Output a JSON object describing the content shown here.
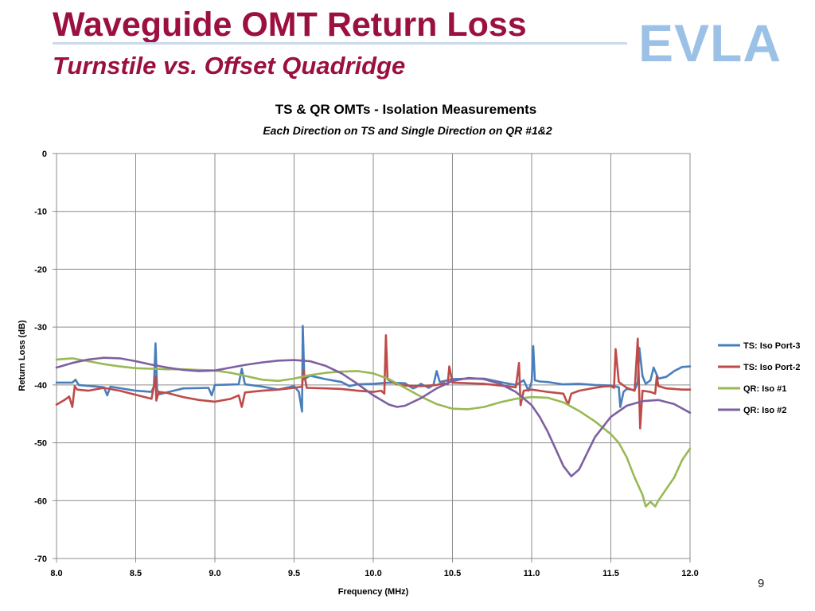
{
  "slide": {
    "title": "Waveguide OMT Return Loss",
    "subtitle": "Turnstile vs. Offset Quadridge",
    "logo_text": "EVLA",
    "page_number": "9"
  },
  "colors": {
    "title": "#9b1040",
    "logo": "#9cc1e6",
    "grid": "#8c8c8c"
  },
  "chart_data": {
    "type": "line",
    "title": "TS & QR OMTs - Isolation Measurements",
    "subtitle": "Each  Direction on TS and Single Direction on QR #1&2",
    "xlabel": "Frequency (MHz)",
    "ylabel": "Return Loss (dB)",
    "xlim": [
      8.0,
      12.0
    ],
    "ylim": [
      -70,
      0
    ],
    "x_ticks": [
      "8.0",
      "8.5",
      "9.0",
      "9.5",
      "10.0",
      "10.5",
      "11.0",
      "11.5",
      "12.0"
    ],
    "y_ticks": [
      "0",
      "-10",
      "-20",
      "-30",
      "-40",
      "-50",
      "-60",
      "-70"
    ],
    "grid": true,
    "legend_position": "right",
    "series": [
      {
        "name": "TS: Iso Port-3",
        "color": "#4a7ebb",
        "points": [
          [
            8.0,
            -39.6
          ],
          [
            8.1,
            -39.6
          ],
          [
            8.12,
            -39.1
          ],
          [
            8.14,
            -40.0
          ],
          [
            8.3,
            -40.4
          ],
          [
            8.32,
            -41.8
          ],
          [
            8.34,
            -40.3
          ],
          [
            8.5,
            -41.0
          ],
          [
            8.6,
            -41.2
          ],
          [
            8.615,
            -40.2
          ],
          [
            8.625,
            -32.8
          ],
          [
            8.635,
            -40.8
          ],
          [
            8.65,
            -41.6
          ],
          [
            8.8,
            -40.6
          ],
          [
            8.96,
            -40.5
          ],
          [
            8.98,
            -41.8
          ],
          [
            9.0,
            -40.0
          ],
          [
            9.15,
            -39.9
          ],
          [
            9.17,
            -37.2
          ],
          [
            9.19,
            -39.9
          ],
          [
            9.3,
            -40.3
          ],
          [
            9.4,
            -40.8
          ],
          [
            9.45,
            -40.5
          ],
          [
            9.5,
            -40.2
          ],
          [
            9.53,
            -41.2
          ],
          [
            9.55,
            -44.6
          ],
          [
            9.555,
            -29.8
          ],
          [
            9.565,
            -39.0
          ],
          [
            9.6,
            -38.4
          ],
          [
            9.7,
            -39.0
          ],
          [
            9.8,
            -39.5
          ],
          [
            9.85,
            -40.2
          ],
          [
            9.9,
            -39.9
          ],
          [
            10.0,
            -39.8
          ],
          [
            10.1,
            -39.6
          ],
          [
            10.2,
            -39.7
          ],
          [
            10.25,
            -40.6
          ],
          [
            10.27,
            -40.4
          ],
          [
            10.3,
            -39.8
          ],
          [
            10.35,
            -40.5
          ],
          [
            10.38,
            -40.0
          ],
          [
            10.4,
            -37.6
          ],
          [
            10.42,
            -39.5
          ],
          [
            10.5,
            -39.0
          ],
          [
            10.6,
            -38.9
          ],
          [
            10.7,
            -38.9
          ],
          [
            10.8,
            -39.5
          ],
          [
            10.9,
            -40.0
          ],
          [
            10.95,
            -39.2
          ],
          [
            10.98,
            -41.0
          ],
          [
            11.0,
            -39.5
          ],
          [
            11.01,
            -33.3
          ],
          [
            11.02,
            -39.2
          ],
          [
            11.05,
            -39.4
          ],
          [
            11.1,
            -39.5
          ],
          [
            11.2,
            -39.9
          ],
          [
            11.3,
            -39.8
          ],
          [
            11.4,
            -40.0
          ],
          [
            11.5,
            -40.1
          ],
          [
            11.55,
            -40.4
          ],
          [
            11.56,
            -43.8
          ],
          [
            11.58,
            -41.2
          ],
          [
            11.6,
            -40.7
          ],
          [
            11.65,
            -40.9
          ],
          [
            11.67,
            -39.5
          ],
          [
            11.68,
            -33.6
          ],
          [
            11.7,
            -38.5
          ],
          [
            11.72,
            -39.8
          ],
          [
            11.75,
            -39.2
          ],
          [
            11.77,
            -37.0
          ],
          [
            11.8,
            -38.9
          ],
          [
            11.85,
            -38.6
          ],
          [
            11.9,
            -37.6
          ],
          [
            11.95,
            -36.9
          ],
          [
            12.0,
            -36.8
          ]
        ]
      },
      {
        "name": "TS: Iso Port-2",
        "color": "#be4b48",
        "points": [
          [
            8.0,
            -43.4
          ],
          [
            8.05,
            -42.6
          ],
          [
            8.08,
            -42.0
          ],
          [
            8.1,
            -43.8
          ],
          [
            8.115,
            -40.2
          ],
          [
            8.13,
            -40.8
          ],
          [
            8.2,
            -41.0
          ],
          [
            8.3,
            -40.5
          ],
          [
            8.4,
            -41.0
          ],
          [
            8.5,
            -41.7
          ],
          [
            8.6,
            -42.4
          ],
          [
            8.615,
            -40.2
          ],
          [
            8.625,
            -38.5
          ],
          [
            8.63,
            -42.7
          ],
          [
            8.645,
            -41.2
          ],
          [
            8.7,
            -41.4
          ],
          [
            8.8,
            -42.1
          ],
          [
            8.9,
            -42.6
          ],
          [
            9.0,
            -42.9
          ],
          [
            9.1,
            -42.4
          ],
          [
            9.15,
            -41.8
          ],
          [
            9.17,
            -43.8
          ],
          [
            9.19,
            -41.3
          ],
          [
            9.3,
            -41.0
          ],
          [
            9.4,
            -40.8
          ],
          [
            9.5,
            -40.5
          ],
          [
            9.55,
            -40.3
          ],
          [
            9.56,
            -37.5
          ],
          [
            9.58,
            -40.5
          ],
          [
            9.7,
            -40.6
          ],
          [
            9.8,
            -40.7
          ],
          [
            9.9,
            -41.0
          ],
          [
            10.0,
            -41.2
          ],
          [
            10.05,
            -41.0
          ],
          [
            10.07,
            -41.5
          ],
          [
            10.08,
            -31.4
          ],
          [
            10.09,
            -39.0
          ],
          [
            10.15,
            -39.9
          ],
          [
            10.2,
            -40.1
          ],
          [
            10.3,
            -40.2
          ],
          [
            10.4,
            -40.0
          ],
          [
            10.45,
            -39.7
          ],
          [
            10.47,
            -39.9
          ],
          [
            10.48,
            -36.8
          ],
          [
            10.5,
            -39.6
          ],
          [
            10.6,
            -39.7
          ],
          [
            10.7,
            -39.8
          ],
          [
            10.8,
            -40.1
          ],
          [
            10.9,
            -40.4
          ],
          [
            10.92,
            -36.2
          ],
          [
            10.93,
            -43.5
          ],
          [
            10.95,
            -41.0
          ],
          [
            11.0,
            -40.8
          ],
          [
            11.1,
            -41.2
          ],
          [
            11.2,
            -41.5
          ],
          [
            11.23,
            -43.4
          ],
          [
            11.25,
            -41.5
          ],
          [
            11.3,
            -41.0
          ],
          [
            11.4,
            -40.5
          ],
          [
            11.45,
            -40.3
          ],
          [
            11.5,
            -40.2
          ],
          [
            11.52,
            -40.5
          ],
          [
            11.53,
            -33.8
          ],
          [
            11.55,
            -39.5
          ],
          [
            11.6,
            -40.5
          ],
          [
            11.65,
            -41.0
          ],
          [
            11.67,
            -32.0
          ],
          [
            11.685,
            -47.5
          ],
          [
            11.7,
            -41.0
          ],
          [
            11.75,
            -41.2
          ],
          [
            11.78,
            -41.5
          ],
          [
            11.79,
            -38.5
          ],
          [
            11.8,
            -40.2
          ],
          [
            11.85,
            -40.6
          ],
          [
            11.9,
            -40.7
          ],
          [
            11.95,
            -40.8
          ],
          [
            12.0,
            -40.8
          ]
        ]
      },
      {
        "name": "QR: Iso #1",
        "color": "#98b954",
        "points": [
          [
            8.0,
            -35.6
          ],
          [
            8.1,
            -35.4
          ],
          [
            8.2,
            -35.9
          ],
          [
            8.3,
            -36.4
          ],
          [
            8.4,
            -36.8
          ],
          [
            8.5,
            -37.1
          ],
          [
            8.6,
            -37.2
          ],
          [
            8.7,
            -37.3
          ],
          [
            8.8,
            -37.3
          ],
          [
            8.9,
            -37.4
          ],
          [
            9.0,
            -37.5
          ],
          [
            9.1,
            -37.9
          ],
          [
            9.2,
            -38.5
          ],
          [
            9.3,
            -39.1
          ],
          [
            9.4,
            -39.3
          ],
          [
            9.5,
            -38.9
          ],
          [
            9.6,
            -38.3
          ],
          [
            9.7,
            -37.9
          ],
          [
            9.8,
            -37.7
          ],
          [
            9.9,
            -37.6
          ],
          [
            10.0,
            -38.0
          ],
          [
            10.1,
            -39.0
          ],
          [
            10.2,
            -40.5
          ],
          [
            10.3,
            -42.0
          ],
          [
            10.4,
            -43.3
          ],
          [
            10.5,
            -44.1
          ],
          [
            10.6,
            -44.2
          ],
          [
            10.7,
            -43.8
          ],
          [
            10.8,
            -43.0
          ],
          [
            10.9,
            -42.4
          ],
          [
            11.0,
            -42.1
          ],
          [
            11.1,
            -42.2
          ],
          [
            11.2,
            -43.0
          ],
          [
            11.3,
            -44.5
          ],
          [
            11.4,
            -46.3
          ],
          [
            11.5,
            -48.5
          ],
          [
            11.55,
            -50.0
          ],
          [
            11.6,
            -52.5
          ],
          [
            11.65,
            -56.0
          ],
          [
            11.7,
            -59.0
          ],
          [
            11.72,
            -61.0
          ],
          [
            11.75,
            -60.2
          ],
          [
            11.78,
            -61.0
          ],
          [
            11.8,
            -60.0
          ],
          [
            11.85,
            -58.0
          ],
          [
            11.9,
            -56.0
          ],
          [
            11.95,
            -53.0
          ],
          [
            12.0,
            -51.0
          ]
        ]
      },
      {
        "name": "QR: Iso #2",
        "color": "#7d60a0",
        "points": [
          [
            8.0,
            -37.0
          ],
          [
            8.1,
            -36.2
          ],
          [
            8.2,
            -35.6
          ],
          [
            8.3,
            -35.3
          ],
          [
            8.4,
            -35.4
          ],
          [
            8.5,
            -35.9
          ],
          [
            8.6,
            -36.5
          ],
          [
            8.7,
            -37.0
          ],
          [
            8.8,
            -37.4
          ],
          [
            8.9,
            -37.6
          ],
          [
            9.0,
            -37.5
          ],
          [
            9.1,
            -37.0
          ],
          [
            9.2,
            -36.5
          ],
          [
            9.3,
            -36.1
          ],
          [
            9.4,
            -35.8
          ],
          [
            9.5,
            -35.7
          ],
          [
            9.6,
            -35.9
          ],
          [
            9.7,
            -36.7
          ],
          [
            9.8,
            -38.0
          ],
          [
            9.9,
            -39.8
          ],
          [
            10.0,
            -41.8
          ],
          [
            10.1,
            -43.4
          ],
          [
            10.15,
            -43.8
          ],
          [
            10.2,
            -43.6
          ],
          [
            10.3,
            -42.3
          ],
          [
            10.4,
            -40.6
          ],
          [
            10.5,
            -39.3
          ],
          [
            10.6,
            -38.8
          ],
          [
            10.7,
            -39.0
          ],
          [
            10.8,
            -39.8
          ],
          [
            10.9,
            -41.2
          ],
          [
            11.0,
            -43.5
          ],
          [
            11.05,
            -45.5
          ],
          [
            11.1,
            -48.0
          ],
          [
            11.15,
            -51.0
          ],
          [
            11.2,
            -54.0
          ],
          [
            11.25,
            -55.8
          ],
          [
            11.3,
            -54.6
          ],
          [
            11.35,
            -51.8
          ],
          [
            11.4,
            -49.0
          ],
          [
            11.5,
            -45.5
          ],
          [
            11.6,
            -43.6
          ],
          [
            11.7,
            -42.8
          ],
          [
            11.8,
            -42.6
          ],
          [
            11.9,
            -43.3
          ],
          [
            12.0,
            -44.8
          ]
        ]
      }
    ]
  }
}
